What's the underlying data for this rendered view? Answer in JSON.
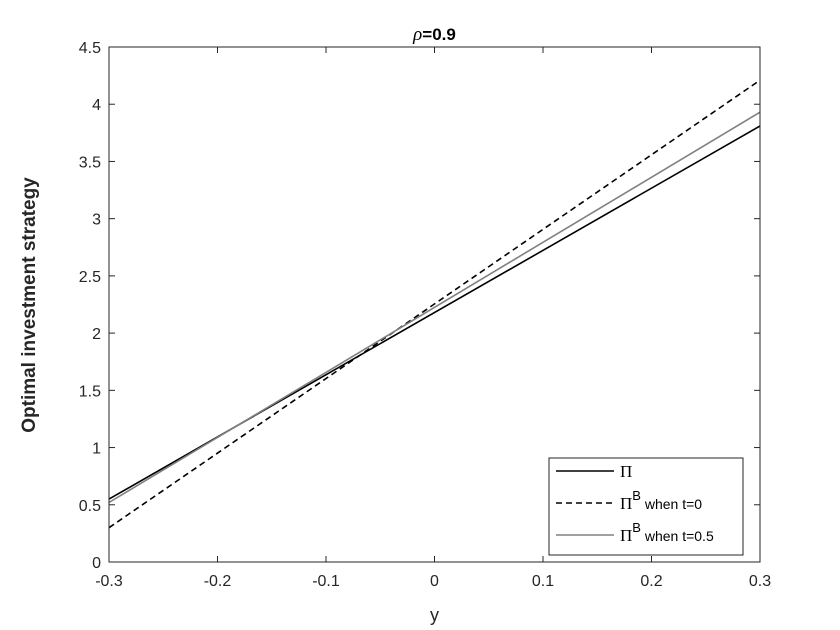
{
  "chart_data": {
    "type": "line",
    "title_symbol": "ρ",
    "title_value": "=0.9",
    "xlabel": "y",
    "ylabel": "Optimal investment strategy",
    "xlim": [
      -0.3,
      0.3
    ],
    "ylim": [
      0,
      4.5
    ],
    "xticks": [
      -0.3,
      -0.2,
      -0.1,
      0,
      0.1,
      0.2,
      0.3
    ],
    "xtick_labels": [
      "-0.3",
      "-0.2",
      "-0.1",
      "0",
      "0.1",
      "0.2",
      "0.3"
    ],
    "yticks": [
      0,
      0.5,
      1,
      1.5,
      2,
      2.5,
      3,
      3.5,
      4,
      4.5
    ],
    "ytick_labels": [
      "0",
      "0.5",
      "1",
      "1.5",
      "2",
      "2.5",
      "3",
      "3.5",
      "4",
      "4.5"
    ],
    "grid": false,
    "legend_position": "bottom-right",
    "series": [
      {
        "name_main": "Π",
        "name_sup": "",
        "name_rest": "",
        "color": "#000000",
        "dash": "solid",
        "x": [
          -0.3,
          0.3
        ],
        "y": [
          0.55,
          3.81
        ]
      },
      {
        "name_main": "Π",
        "name_sup": "B",
        "name_rest": " when t=0",
        "color": "#000000",
        "dash": "dashed",
        "x": [
          -0.3,
          0.3
        ],
        "y": [
          0.3,
          4.21
        ]
      },
      {
        "name_main": "Π",
        "name_sup": "B",
        "name_rest": " when t=0.5",
        "color": "#808080",
        "dash": "solid",
        "x": [
          -0.3,
          0.3
        ],
        "y": [
          0.52,
          3.93
        ]
      }
    ]
  }
}
